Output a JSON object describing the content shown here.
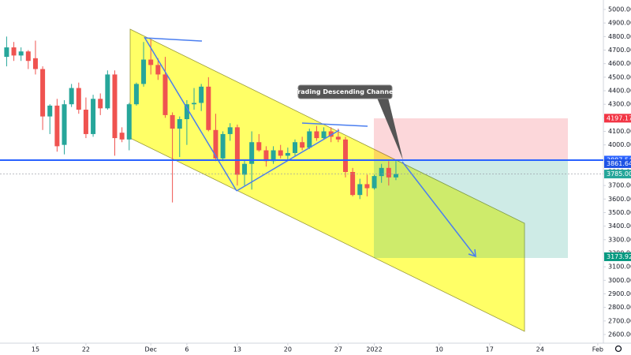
{
  "chart_data": {
    "type": "candlestick",
    "annotation": "Trading Descending Channel",
    "up_color": "#26a69a",
    "down_color": "#ef5350",
    "categories": [
      null,
      null,
      null,
      null,
      "15",
      null,
      null,
      null,
      null,
      null,
      null,
      "22",
      null,
      null,
      null,
      null,
      null,
      null,
      null,
      null,
      "Dec",
      null,
      null,
      null,
      null,
      "6",
      null,
      null,
      null,
      null,
      null,
      null,
      "13",
      null,
      null,
      null,
      null,
      null,
      null,
      "20",
      null,
      null,
      null,
      null,
      null,
      null,
      "27",
      null,
      null,
      null,
      null,
      "2022",
      null,
      null,
      null,
      null,
      null,
      null,
      null,
      null,
      "10",
      null,
      null,
      null,
      null,
      null,
      null,
      "17",
      null,
      null,
      null,
      null,
      null,
      null,
      "24",
      null,
      null,
      null,
      null,
      null,
      null,
      null,
      "Feb"
    ],
    "open": [
      4650,
      4720,
      4660,
      4690,
      4640,
      4560,
      4210,
      4290,
      4000,
      4300,
      4420,
      4260,
      4080,
      4340,
      4270,
      4520,
      4090,
      4040,
      4300,
      4450,
      4630,
      4590,
      4520,
      4220,
      4120,
      4190,
      4300,
      4310,
      4430,
      4110,
      3900,
      4080,
      4130,
      3780,
      3860,
      4020,
      3960,
      3880,
      3960,
      3920,
      3940,
      4020,
      3980,
      4100,
      4050,
      4100,
      4060,
      4040,
      3800,
      3630,
      3710,
      3680,
      3770,
      3830,
      3760,
      null,
      null,
      null,
      null,
      null,
      null,
      null,
      null,
      null,
      null,
      null,
      null,
      null,
      null,
      null,
      null,
      null,
      null,
      null,
      null,
      null,
      null,
      null,
      null,
      null,
      null,
      null,
      null
    ],
    "high": [
      4800,
      4760,
      4720,
      4700,
      4770,
      4580,
      4300,
      4340,
      4330,
      4450,
      4460,
      4350,
      4370,
      4380,
      4550,
      4550,
      4130,
      4310,
      4460,
      4760,
      4780,
      4640,
      4650,
      4240,
      4210,
      4330,
      4420,
      4450,
      4500,
      4230,
      4100,
      4160,
      4150,
      3890,
      4100,
      4080,
      3990,
      3990,
      4000,
      3980,
      4040,
      4060,
      4120,
      4140,
      4130,
      4130,
      4120,
      4060,
      3830,
      3750,
      3780,
      3780,
      3860,
      3880,
      3880,
      null,
      null,
      null,
      null,
      null,
      null,
      null,
      null,
      null,
      null,
      null,
      null,
      null,
      null,
      null,
      null,
      null,
      null,
      null,
      null,
      null,
      null,
      null,
      null,
      null,
      null,
      null,
      null
    ],
    "low": [
      4580,
      4620,
      4620,
      4560,
      4520,
      4110,
      4080,
      3950,
      3930,
      4280,
      4230,
      4050,
      4060,
      4220,
      4260,
      3920,
      4020,
      3960,
      4290,
      4430,
      4520,
      4480,
      4200,
      3575,
      3910,
      4000,
      4260,
      4250,
      4100,
      3880,
      3880,
      4030,
      3700,
      3700,
      3670,
      3950,
      3840,
      3860,
      3900,
      3880,
      3920,
      3960,
      3970,
      4030,
      4040,
      4020,
      4020,
      3760,
      3620,
      3600,
      3620,
      3670,
      3720,
      3700,
      3740,
      null,
      null,
      null,
      null,
      null,
      null,
      null,
      null,
      null,
      null,
      null,
      null,
      null,
      null,
      null,
      null,
      null,
      null,
      null,
      null,
      null,
      null,
      null,
      null,
      null,
      null,
      null,
      null
    ],
    "close": [
      4720,
      4660,
      4690,
      4620,
      4560,
      4210,
      4290,
      3990,
      4300,
      4420,
      4260,
      4080,
      4340,
      4270,
      4520,
      4050,
      4040,
      4300,
      4450,
      4630,
      4590,
      4520,
      4220,
      4120,
      4190,
      4300,
      4310,
      4430,
      4110,
      3900,
      4080,
      4130,
      3780,
      3860,
      4020,
      3960,
      3880,
      3960,
      3920,
      3940,
      4020,
      3980,
      4100,
      4050,
      4100,
      4060,
      4040,
      3800,
      3630,
      3710,
      3680,
      3770,
      3830,
      3760,
      3785,
      null,
      null,
      null,
      null,
      null,
      null,
      null,
      null,
      null,
      null,
      null,
      null,
      null,
      null,
      null,
      null,
      null,
      null,
      null,
      null,
      null,
      null,
      null,
      null,
      null,
      null,
      null,
      null
    ],
    "ylim": [
      2600,
      5000
    ],
    "yticks": [
      {
        "value": 2600,
        "label": "2600.00"
      },
      {
        "value": 2700,
        "label": "2700.00"
      },
      {
        "value": 2800,
        "label": "2800.00"
      },
      {
        "value": 2900,
        "label": "2900.00"
      },
      {
        "value": 3000,
        "label": "3000.00"
      },
      {
        "value": 3100,
        "label": "3100.00"
      },
      {
        "value": 3200,
        "label": "3200.00"
      },
      {
        "value": 3300,
        "label": "3300.00"
      },
      {
        "value": 3400,
        "label": "3400.00"
      },
      {
        "value": 3500,
        "label": "3500.00"
      },
      {
        "value": 3600,
        "label": "3600.00"
      },
      {
        "value": 3700,
        "label": "3700.00"
      },
      {
        "value": 3800,
        "label": "3800.00"
      },
      {
        "value": 3900,
        "label": "3900.00"
      },
      {
        "value": 4000,
        "label": "4000.00"
      },
      {
        "value": 4100,
        "label": "4100.00"
      },
      {
        "value": 4200,
        "label": "4200.00"
      },
      {
        "value": 4300,
        "label": "4300.00"
      },
      {
        "value": 4400,
        "label": "4400.00"
      },
      {
        "value": 4500,
        "label": "4500.00"
      },
      {
        "value": 4600,
        "label": "4600.00"
      },
      {
        "value": 4700,
        "label": "4700.00"
      },
      {
        "value": 4800,
        "label": "4800.00"
      },
      {
        "value": 4900,
        "label": "4900.00"
      },
      {
        "value": 5000,
        "label": "5000.00"
      }
    ],
    "price_labels": [
      {
        "value": 4197.17,
        "label": "4197.17",
        "color": "#f23645"
      },
      {
        "value": 3887.54,
        "label": "3887.54",
        "color": "#2962ff"
      },
      {
        "value": 3861.64,
        "label": "3861.64",
        "color": "#1e53e5"
      },
      {
        "value": 3785.0,
        "label": "3785.00",
        "color": "#26a69a"
      },
      {
        "value": 3173.92,
        "label": "3173.92",
        "color": "#089981"
      }
    ]
  }
}
